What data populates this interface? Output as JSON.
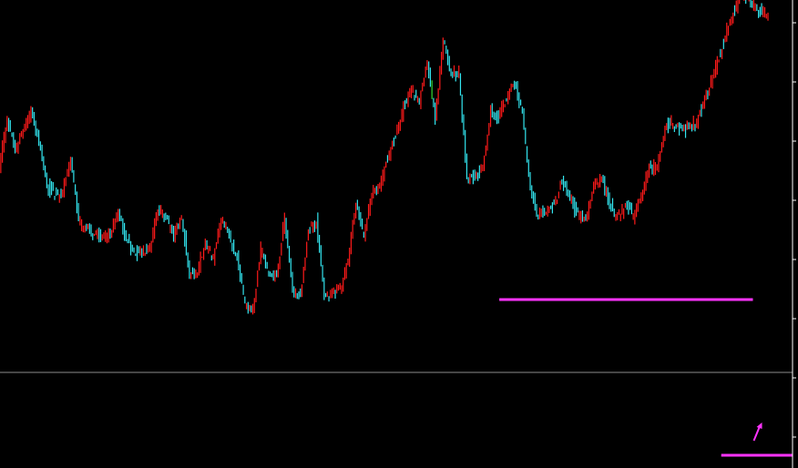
{
  "colors": {
    "background": "#000000",
    "up": "#ff1a1a",
    "down": "#33e6f0",
    "highlight": "#33dd33",
    "level": "#ff33ff",
    "price_line": "#8c8c8c",
    "axis": "#ffffff"
  },
  "chart_data": {
    "type": "line",
    "title": "",
    "xlabel": "",
    "ylabel": "",
    "grid": false,
    "legend": "none",
    "ylim": [
      0,
      514
    ],
    "series": [
      {
        "values": [
          330,
          385,
          350,
          372,
          392,
          360,
          310,
          300,
          303,
          340,
          270,
          262,
          258,
          250,
          258,
          280,
          253,
          238,
          235,
          240,
          285,
          275,
          255,
          278,
          212,
          215,
          250,
          230,
          275,
          255,
          232,
          180,
          173,
          240,
          215,
          210,
          275,
          195,
          190,
          260,
          270,
          190,
          192,
          195,
          230,
          290,
          255,
          300,
          308,
          342,
          365,
          395,
          415,
          402,
          448,
          384,
          468,
          432,
          435,
          318,
          320,
          330,
          392,
          385,
          405,
          425,
          390,
          305,
          278,
          285,
          290,
          314,
          295,
          278,
          272,
          310,
          318,
          290,
          275,
          290,
          275,
          298,
          328,
          332,
          375,
          378,
          374,
          372,
          380,
          404,
          428,
          456,
          490,
          508,
          520,
          510,
          503,
          495
        ]
      }
    ],
    "levels": [
      {
        "kind": "horizontal-segment",
        "value": 185,
        "from_index": 63,
        "to_index": 95
      },
      {
        "kind": "horizontal-segment",
        "value": 14,
        "from_index": 91,
        "to_index": 100
      }
    ],
    "current_price_line": 105,
    "annotations": [
      {
        "kind": "arrow-up",
        "index": 95,
        "value": 40
      }
    ]
  }
}
